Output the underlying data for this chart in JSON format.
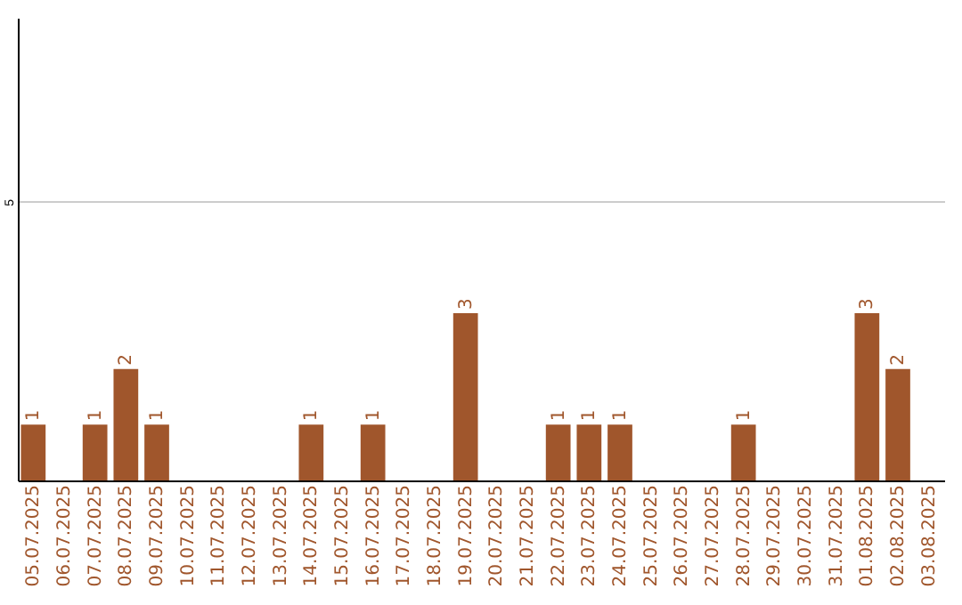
{
  "chart_data": {
    "type": "bar",
    "categories": [
      "05.07.2025",
      "06.07.2025",
      "07.07.2025",
      "08.07.2025",
      "09.07.2025",
      "10.07.2025",
      "11.07.2025",
      "12.07.2025",
      "13.07.2025",
      "14.07.2025",
      "15.07.2025",
      "16.07.2025",
      "17.07.2025",
      "18.07.2025",
      "19.07.2025",
      "20.07.2025",
      "21.07.2025",
      "22.07.2025",
      "23.07.2025",
      "24.07.2025",
      "25.07.2025",
      "26.07.2025",
      "27.07.2025",
      "28.07.2025",
      "29.07.2025",
      "30.07.2025",
      "31.07.2025",
      "01.08.2025",
      "02.08.2025",
      "03.08.2025"
    ],
    "values": [
      1,
      0,
      1,
      2,
      1,
      0,
      0,
      0,
      0,
      1,
      0,
      1,
      0,
      0,
      3,
      0,
      0,
      1,
      1,
      1,
      0,
      0,
      0,
      1,
      0,
      0,
      0,
      3,
      2,
      0
    ],
    "value_labels": [
      "1",
      null,
      "1",
      "2",
      "1",
      null,
      null,
      null,
      null,
      "1",
      null,
      "1",
      null,
      null,
      "3",
      null,
      null,
      "1",
      "1",
      "1",
      null,
      null,
      null,
      "1",
      null,
      null,
      null,
      "3",
      "2",
      null
    ],
    "color": "#a0562c",
    "ylim": [
      0,
      8.3
    ],
    "yticks": [
      5
    ],
    "grid": "y"
  }
}
